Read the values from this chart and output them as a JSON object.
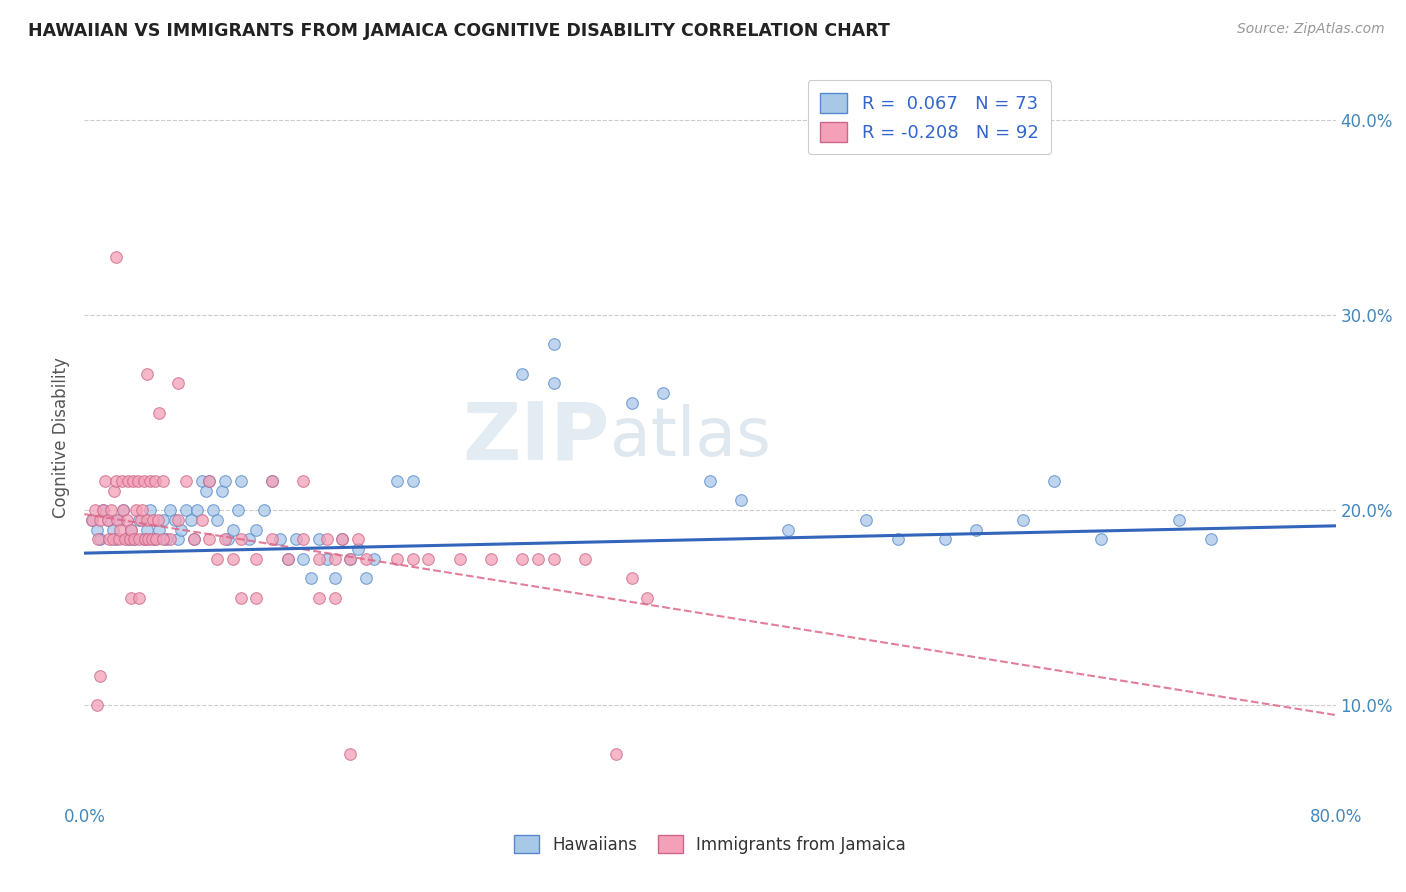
{
  "title": "HAWAIIAN VS IMMIGRANTS FROM JAMAICA COGNITIVE DISABILITY CORRELATION CHART",
  "source": "Source: ZipAtlas.com",
  "ylabel_label": "Cognitive Disability",
  "x_min": 0.0,
  "x_max": 0.8,
  "y_min": 0.05,
  "y_max": 0.425,
  "y_ticks": [
    0.1,
    0.2,
    0.3,
    0.4
  ],
  "y_tick_labels": [
    "10.0%",
    "20.0%",
    "30.0%",
    "40.0%"
  ],
  "x_tick_left_label": "0.0%",
  "x_tick_right_label": "80.0%",
  "hawaiian_color": "#a8c8e8",
  "hawaiian_edge_color": "#5588cc",
  "jamaica_color": "#f4a0b8",
  "jamaica_edge_color": "#cc6688",
  "hawaiian_line_color": "#3366bb",
  "jamaica_line_color": "#dd6688",
  "R_hawaiian": "0.067",
  "N_hawaiian": "73",
  "R_jamaica": "-0.208",
  "N_jamaica": "92",
  "watermark": "ZIPatlas",
  "background_color": "#ffffff",
  "grid_color": "#cccccc",
  "tick_label_color": "#4488bb",
  "hawaiian_scatter": [
    [
      0.005,
      0.195
    ],
    [
      0.008,
      0.19
    ],
    [
      0.01,
      0.185
    ],
    [
      0.012,
      0.2
    ],
    [
      0.015,
      0.195
    ],
    [
      0.018,
      0.19
    ],
    [
      0.02,
      0.185
    ],
    [
      0.022,
      0.195
    ],
    [
      0.025,
      0.2
    ],
    [
      0.028,
      0.185
    ],
    [
      0.03,
      0.19
    ],
    [
      0.032,
      0.185
    ],
    [
      0.035,
      0.195
    ],
    [
      0.038,
      0.185
    ],
    [
      0.04,
      0.19
    ],
    [
      0.042,
      0.2
    ],
    [
      0.045,
      0.185
    ],
    [
      0.048,
      0.19
    ],
    [
      0.05,
      0.195
    ],
    [
      0.052,
      0.185
    ],
    [
      0.055,
      0.2
    ],
    [
      0.058,
      0.195
    ],
    [
      0.06,
      0.185
    ],
    [
      0.062,
      0.19
    ],
    [
      0.065,
      0.2
    ],
    [
      0.068,
      0.195
    ],
    [
      0.07,
      0.185
    ],
    [
      0.072,
      0.2
    ],
    [
      0.075,
      0.215
    ],
    [
      0.078,
      0.21
    ],
    [
      0.08,
      0.215
    ],
    [
      0.082,
      0.2
    ],
    [
      0.085,
      0.195
    ],
    [
      0.088,
      0.21
    ],
    [
      0.09,
      0.215
    ],
    [
      0.092,
      0.185
    ],
    [
      0.095,
      0.19
    ],
    [
      0.098,
      0.2
    ],
    [
      0.1,
      0.215
    ],
    [
      0.105,
      0.185
    ],
    [
      0.11,
      0.19
    ],
    [
      0.115,
      0.2
    ],
    [
      0.12,
      0.215
    ],
    [
      0.125,
      0.185
    ],
    [
      0.13,
      0.175
    ],
    [
      0.135,
      0.185
    ],
    [
      0.14,
      0.175
    ],
    [
      0.145,
      0.165
    ],
    [
      0.15,
      0.185
    ],
    [
      0.155,
      0.175
    ],
    [
      0.16,
      0.165
    ],
    [
      0.165,
      0.185
    ],
    [
      0.17,
      0.175
    ],
    [
      0.175,
      0.18
    ],
    [
      0.18,
      0.165
    ],
    [
      0.185,
      0.175
    ],
    [
      0.2,
      0.215
    ],
    [
      0.21,
      0.215
    ],
    [
      0.28,
      0.27
    ],
    [
      0.3,
      0.285
    ],
    [
      0.3,
      0.265
    ],
    [
      0.35,
      0.255
    ],
    [
      0.37,
      0.26
    ],
    [
      0.4,
      0.215
    ],
    [
      0.42,
      0.205
    ],
    [
      0.45,
      0.19
    ],
    [
      0.5,
      0.195
    ],
    [
      0.52,
      0.185
    ],
    [
      0.55,
      0.185
    ],
    [
      0.57,
      0.19
    ],
    [
      0.6,
      0.195
    ],
    [
      0.62,
      0.215
    ],
    [
      0.65,
      0.185
    ],
    [
      0.7,
      0.195
    ],
    [
      0.72,
      0.185
    ]
  ],
  "jamaica_scatter": [
    [
      0.005,
      0.195
    ],
    [
      0.007,
      0.2
    ],
    [
      0.009,
      0.185
    ],
    [
      0.01,
      0.195
    ],
    [
      0.012,
      0.2
    ],
    [
      0.013,
      0.215
    ],
    [
      0.015,
      0.195
    ],
    [
      0.016,
      0.185
    ],
    [
      0.017,
      0.2
    ],
    [
      0.018,
      0.185
    ],
    [
      0.019,
      0.21
    ],
    [
      0.02,
      0.215
    ],
    [
      0.021,
      0.195
    ],
    [
      0.022,
      0.185
    ],
    [
      0.023,
      0.19
    ],
    [
      0.024,
      0.215
    ],
    [
      0.025,
      0.2
    ],
    [
      0.026,
      0.185
    ],
    [
      0.027,
      0.195
    ],
    [
      0.028,
      0.215
    ],
    [
      0.029,
      0.185
    ],
    [
      0.03,
      0.19
    ],
    [
      0.031,
      0.215
    ],
    [
      0.032,
      0.185
    ],
    [
      0.033,
      0.2
    ],
    [
      0.034,
      0.215
    ],
    [
      0.035,
      0.185
    ],
    [
      0.036,
      0.195
    ],
    [
      0.037,
      0.2
    ],
    [
      0.038,
      0.215
    ],
    [
      0.039,
      0.185
    ],
    [
      0.04,
      0.195
    ],
    [
      0.041,
      0.185
    ],
    [
      0.042,
      0.215
    ],
    [
      0.043,
      0.185
    ],
    [
      0.044,
      0.195
    ],
    [
      0.045,
      0.215
    ],
    [
      0.046,
      0.185
    ],
    [
      0.047,
      0.195
    ],
    [
      0.048,
      0.25
    ],
    [
      0.05,
      0.215
    ],
    [
      0.055,
      0.185
    ],
    [
      0.06,
      0.195
    ],
    [
      0.065,
      0.215
    ],
    [
      0.07,
      0.185
    ],
    [
      0.075,
      0.195
    ],
    [
      0.08,
      0.185
    ],
    [
      0.085,
      0.175
    ],
    [
      0.09,
      0.185
    ],
    [
      0.095,
      0.175
    ],
    [
      0.1,
      0.185
    ],
    [
      0.11,
      0.175
    ],
    [
      0.12,
      0.185
    ],
    [
      0.13,
      0.175
    ],
    [
      0.14,
      0.185
    ],
    [
      0.15,
      0.175
    ],
    [
      0.155,
      0.185
    ],
    [
      0.16,
      0.175
    ],
    [
      0.165,
      0.185
    ],
    [
      0.17,
      0.175
    ],
    [
      0.175,
      0.185
    ],
    [
      0.18,
      0.175
    ],
    [
      0.04,
      0.27
    ],
    [
      0.06,
      0.265
    ],
    [
      0.08,
      0.215
    ],
    [
      0.12,
      0.215
    ],
    [
      0.14,
      0.215
    ],
    [
      0.02,
      0.33
    ],
    [
      0.008,
      0.1
    ],
    [
      0.01,
      0.115
    ],
    [
      0.03,
      0.155
    ],
    [
      0.035,
      0.155
    ],
    [
      0.05,
      0.185
    ],
    [
      0.1,
      0.155
    ],
    [
      0.11,
      0.155
    ],
    [
      0.15,
      0.155
    ],
    [
      0.16,
      0.155
    ],
    [
      0.2,
      0.175
    ],
    [
      0.21,
      0.175
    ],
    [
      0.22,
      0.175
    ],
    [
      0.24,
      0.175
    ],
    [
      0.26,
      0.175
    ],
    [
      0.28,
      0.175
    ],
    [
      0.3,
      0.175
    ],
    [
      0.32,
      0.175
    ],
    [
      0.35,
      0.165
    ],
    [
      0.36,
      0.155
    ],
    [
      0.29,
      0.175
    ],
    [
      0.17,
      0.075
    ],
    [
      0.34,
      0.075
    ]
  ]
}
